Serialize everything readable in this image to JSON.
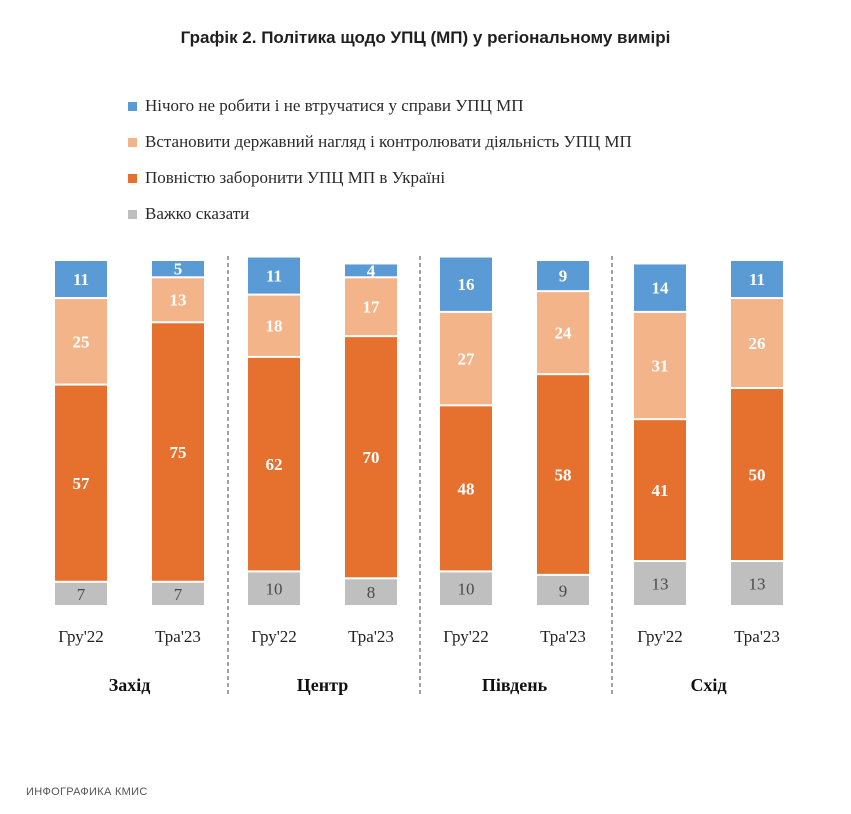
{
  "chart_data": {
    "type": "bar",
    "stacked": true,
    "title": "Графік 2. Політика щодо УПЦ (МП) у регіональному вимірі",
    "groups": [
      "Захід",
      "Центр",
      "Південь",
      "Схід"
    ],
    "categories": [
      "Гру'22",
      "Тра'23",
      "Гру'22",
      "Тра'23",
      "Гру'22",
      "Тра'23",
      "Гру'22",
      "Тра'23"
    ],
    "series": [
      {
        "name": "Важко сказати",
        "color": "#bfbfbf",
        "text_color": "#4a4a4a",
        "values": [
          7,
          7,
          10,
          8,
          10,
          9,
          13,
          13
        ]
      },
      {
        "name": "Повністю заборонити УПЦ МП в Україні",
        "color": "#e6712f",
        "text_color": "#ffffff",
        "values": [
          57,
          75,
          62,
          70,
          48,
          58,
          41,
          50
        ]
      },
      {
        "name": "Встановити державний нагляд і контролювати діяльність УПЦ МП",
        "color": "#f3b48a",
        "text_color": "#ffffff",
        "values": [
          25,
          13,
          18,
          17,
          27,
          24,
          31,
          26
        ]
      },
      {
        "name": "Нічого не робити і не втручатися у справи УПЦ МП",
        "color": "#5b9bd5",
        "text_color": "#ffffff",
        "values": [
          11,
          5,
          11,
          4,
          16,
          9,
          14,
          11
        ]
      }
    ],
    "legend_order": [
      3,
      2,
      1,
      0
    ],
    "legend_position": "top-left",
    "ylim": [
      0,
      100
    ],
    "grid": false
  },
  "footer": {
    "credit": "ИНФОГРАФИКА КМИС"
  }
}
